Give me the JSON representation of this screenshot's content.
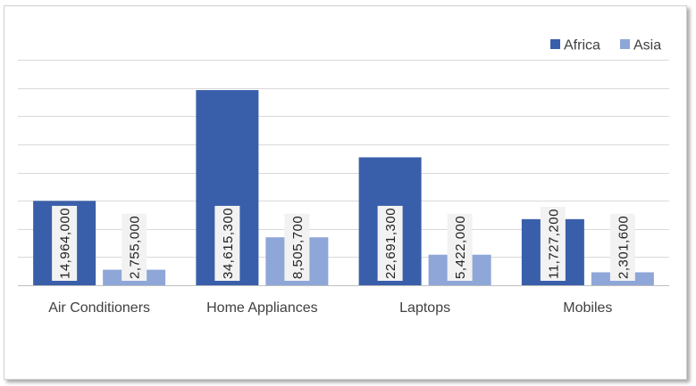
{
  "chart_data": {
    "type": "bar",
    "title": "",
    "xlabel": "",
    "ylabel": "",
    "categories": [
      "Air Conditioners",
      "Home Appliances",
      "Laptops",
      "Mobiles"
    ],
    "series": [
      {
        "name": "Africa",
        "values": [
          14964000,
          34615300,
          22691300,
          11727200
        ],
        "labels": [
          "14,964,000",
          "34,615,300",
          "22,691,300",
          "11,727,200"
        ]
      },
      {
        "name": "Asia",
        "values": [
          2755000,
          8505700,
          5422000,
          2301600
        ],
        "labels": [
          "2,755,000",
          "8,505,700",
          "5,422,000",
          "2,301,600"
        ]
      }
    ],
    "ylim": [
      0,
      40000000
    ],
    "grid": true,
    "legend_position": "top-right",
    "colors": {
      "Africa": "#3a5faa",
      "Asia": "#8fa6d8",
      "gridline": "#d9d9d9",
      "axis": "#bfbfbf",
      "label_bg": "#f2f2f2"
    }
  }
}
